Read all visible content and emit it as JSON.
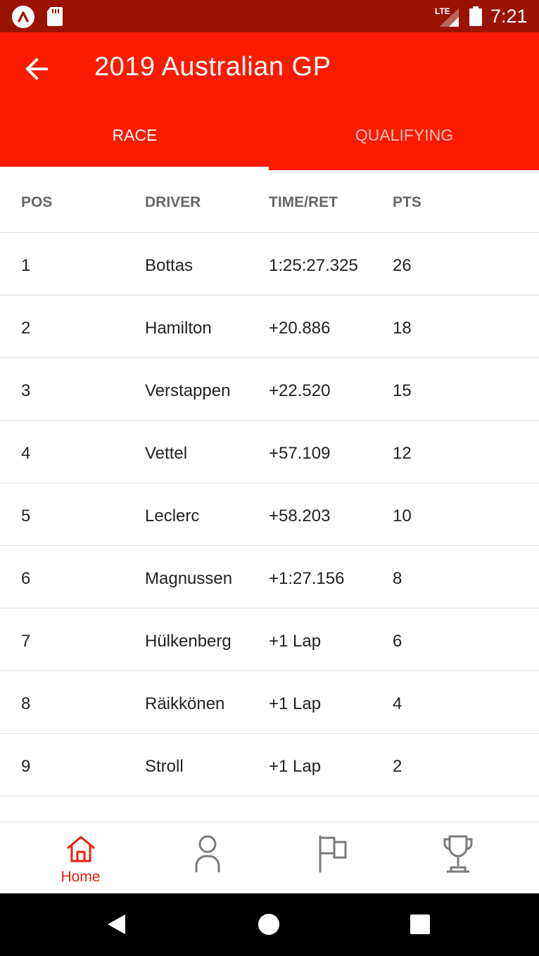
{
  "status_bar": {
    "network_label": "LTE",
    "time": "7:21"
  },
  "header": {
    "title": "2019 Australian GP",
    "tabs": [
      {
        "label": "RACE",
        "selected": true
      },
      {
        "label": "QUALIFYING",
        "selected": false
      }
    ]
  },
  "table": {
    "columns": [
      "POS",
      "DRIVER",
      "TIME/RET",
      "PTS"
    ],
    "rows": [
      {
        "pos": "1",
        "driver": "Bottas",
        "time": "1:25:27.325",
        "pts": "26"
      },
      {
        "pos": "2",
        "driver": "Hamilton",
        "time": "+20.886",
        "pts": "18"
      },
      {
        "pos": "3",
        "driver": "Verstappen",
        "time": "+22.520",
        "pts": "15"
      },
      {
        "pos": "4",
        "driver": "Vettel",
        "time": "+57.109",
        "pts": "12"
      },
      {
        "pos": "5",
        "driver": "Leclerc",
        "time": "+58.203",
        "pts": "10"
      },
      {
        "pos": "6",
        "driver": "Magnussen",
        "time": "+1:27.156",
        "pts": "8"
      },
      {
        "pos": "7",
        "driver": "Hülkenberg",
        "time": "+1 Lap",
        "pts": "6"
      },
      {
        "pos": "8",
        "driver": "Räikkönen",
        "time": "+1 Lap",
        "pts": "4"
      },
      {
        "pos": "9",
        "driver": "Stroll",
        "time": "+1 Lap",
        "pts": "2"
      }
    ]
  },
  "bottom_nav": {
    "items": [
      {
        "label": "Home",
        "icon": "home-icon",
        "active": true
      },
      {
        "label": "",
        "icon": "person-icon",
        "active": false
      },
      {
        "label": "",
        "icon": "flag-icon",
        "active": false
      },
      {
        "label": "",
        "icon": "trophy-icon",
        "active": false
      }
    ]
  },
  "colors": {
    "status_bar": "#9a1200",
    "primary": "#fa1b02",
    "active_nav": "#e8210c",
    "inactive_icon": "#7a7a7a"
  }
}
